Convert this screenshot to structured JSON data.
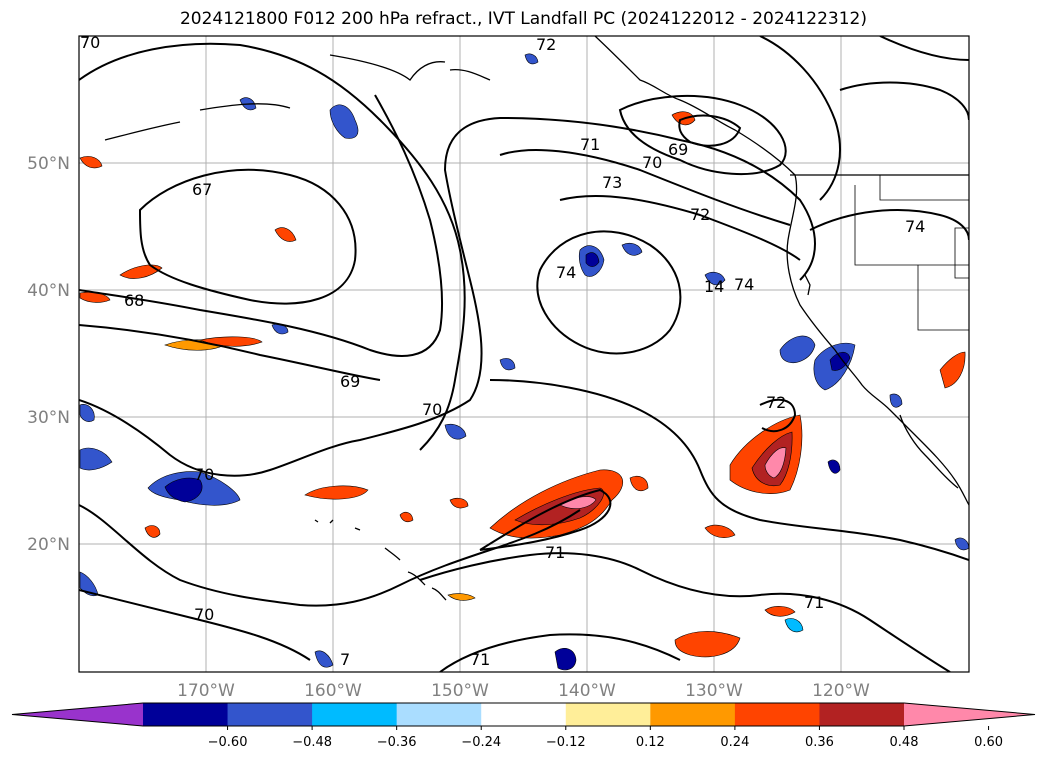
{
  "title": "2024121800 F012 200 hPa refract., IVT Landfall PC (2024122012 - 2024122312)",
  "lon_ticks": [
    "170°W",
    "160°W",
    "150°W",
    "140°W",
    "130°W",
    "120°W"
  ],
  "lat_ticks": [
    "50°N",
    "40°N",
    "30°N",
    "20°N"
  ],
  "contour_labels": [
    "70",
    "72",
    "67",
    "71",
    "70",
    "69",
    "73",
    "72",
    "74",
    "68",
    "69",
    "70",
    "74",
    "14",
    "74",
    "72",
    "70",
    "71",
    "70",
    "71",
    "71",
    "7"
  ],
  "colorbar": {
    "ticks": [
      "−0.60",
      "−0.48",
      "−0.36",
      "−0.24",
      "−0.12",
      "0.12",
      "0.24",
      "0.36",
      "0.48",
      "0.60"
    ],
    "colors": [
      "#9933cc",
      "#000099",
      "#3355cc",
      "#00bbff",
      "#aaddff",
      "#ffffff",
      "#ffee99",
      "#ff9900",
      "#ff4400",
      "#b22222",
      "#ff88aa"
    ]
  },
  "colors": {
    "grid": "#b0b0b0",
    "coast": "#000000",
    "contour": "#000000"
  }
}
